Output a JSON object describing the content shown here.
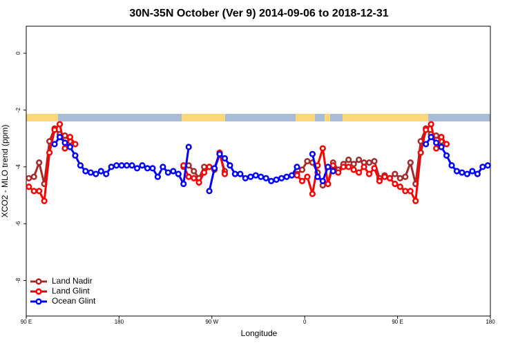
{
  "chart_data": {
    "type": "line",
    "title": "30N-35N October (Ver 9)   2014-09-06 to 2018-12-31",
    "x_label": "Longitude",
    "y_label": "XCO2 - MLO trend (ppm)",
    "xlim": [
      90,
      540
    ],
    "ylim": [
      -9.25,
      0.95
    ],
    "xticks": [
      {
        "value": 90,
        "label": "90 E"
      },
      180,
      {
        "value": 270,
        "label": "90 W"
      },
      {
        "value": 360,
        "label": "0"
      },
      {
        "value": 450,
        "label": "90 E"
      },
      {
        "value": 540,
        "label": "180"
      }
    ],
    "yticks": [
      0,
      -2,
      -4,
      -6,
      -8
    ],
    "legend": "bottom-left",
    "x": [
      92.5,
      97.5,
      102.5,
      107.5,
      112.5,
      117.5,
      122.5,
      127.5,
      132.5,
      137.5,
      142.5,
      147.5,
      152.5,
      157.5,
      162.5,
      167.5,
      172.5,
      177.5,
      182.5,
      187.5,
      192.5,
      197.5,
      202.5,
      207.5,
      212.5,
      217.5,
      222.5,
      227.5,
      232.5,
      237.5,
      242.5,
      247.5,
      252.5,
      257.5,
      262.5,
      267.5,
      272.5,
      277.5,
      282.5,
      287.5,
      292.5,
      297.5,
      302.5,
      307.5,
      312.5,
      317.5,
      322.5,
      327.5,
      332.5,
      337.5,
      342.5,
      347.5,
      352.5,
      357.5,
      362.5,
      367.5,
      372.5,
      377.5,
      382.5,
      387.5,
      392.5,
      397.5,
      402.5,
      407.5,
      412.5,
      417.5,
      422.5,
      427.5,
      432.5,
      437.5,
      442.5,
      447.5,
      452.5,
      457.5,
      462.5,
      467.5,
      472.5,
      477.5,
      482.5,
      487.5,
      492.5,
      497.5,
      502.5,
      507.5,
      512.5,
      517.5,
      522.5,
      527.5,
      532.5,
      537.5
    ],
    "series": [
      {
        "name": "Land Nadir",
        "color": "#a52a2a",
        "values": [
          -4.4,
          -4.35,
          -3.85,
          -4.6,
          -3.1,
          -2.65,
          -2.85,
          -2.9,
          -3.1,
          null,
          null,
          null,
          null,
          null,
          null,
          null,
          null,
          null,
          null,
          null,
          null,
          null,
          null,
          null,
          null,
          null,
          null,
          null,
          null,
          null,
          -4.0,
          -3.95,
          -4.15,
          -4.4,
          -4.0,
          -4.0,
          -4.1,
          -3.55,
          -4.15,
          null,
          null,
          null,
          null,
          null,
          null,
          null,
          null,
          null,
          null,
          null,
          null,
          null,
          -4.25,
          -4.1,
          -3.8,
          -3.85,
          -4.2,
          -4.65,
          -4.6,
          -3.85,
          -4.1,
          -3.9,
          -3.75,
          -3.9,
          -3.75,
          -3.85,
          -3.85,
          -3.8,
          -4.4,
          -4.3,
          -4.4,
          -4.25,
          -4.4,
          -4.35,
          -3.85,
          -4.6,
          -3.1,
          -2.65,
          -2.85,
          -2.9,
          -3.1,
          null,
          null,
          null,
          null,
          null,
          null,
          null,
          null,
          null
        ]
      },
      {
        "name": "Land Glint",
        "color": "#ff0000",
        "values": [
          -4.7,
          -4.85,
          -4.85,
          -5.2,
          -3.5,
          -2.7,
          -2.5,
          -3.35,
          -2.95,
          -3.2,
          null,
          null,
          null,
          null,
          null,
          null,
          null,
          null,
          null,
          null,
          null,
          null,
          null,
          null,
          null,
          null,
          null,
          null,
          null,
          null,
          -3.95,
          -4.35,
          -4.4,
          -4.55,
          -4.2,
          -4.0,
          -4.05,
          -3.5,
          -4.25,
          null,
          null,
          null,
          null,
          null,
          null,
          null,
          null,
          null,
          null,
          null,
          null,
          null,
          -4.3,
          -4.5,
          -4.35,
          -4.95,
          -3.95,
          -3.35,
          -4.6,
          -3.95,
          -4.2,
          -4.0,
          -4.0,
          -4.1,
          -4.2,
          -4.0,
          -4.25,
          -4.05,
          -4.5,
          -4.35,
          -4.4,
          -4.6,
          -4.7,
          -4.85,
          -4.85,
          -5.2,
          -3.5,
          -2.7,
          -2.5,
          -3.35,
          -2.95,
          -3.2,
          null,
          null,
          null,
          null,
          null,
          null,
          null,
          null
        ]
      },
      {
        "name": "Ocean Glint",
        "color": "#0000ff",
        "values": [
          null,
          null,
          null,
          null,
          null,
          -3.2,
          -2.95,
          -3.15,
          -3.3,
          -3.6,
          -3.95,
          -4.15,
          -4.2,
          -4.25,
          -4.15,
          -4.25,
          -4.0,
          -3.95,
          -3.95,
          -3.95,
          -3.95,
          -4.05,
          -3.95,
          -4.05,
          -4.05,
          -4.35,
          -4.0,
          -4.2,
          -4.15,
          -4.25,
          -4.6,
          -3.3,
          null,
          null,
          null,
          -4.85,
          -4.05,
          -3.55,
          -3.7,
          -3.95,
          -4.25,
          -4.25,
          -4.4,
          -4.35,
          -4.3,
          -4.35,
          -4.4,
          -4.5,
          -4.45,
          -4.4,
          -4.35,
          -4.3,
          -4.0,
          null,
          null,
          -3.55,
          -4.35,
          -4.5,
          -4.0,
          -4.15,
          null,
          null,
          null,
          null,
          null,
          null,
          null,
          null,
          null,
          null,
          null,
          null,
          null,
          null,
          null,
          null,
          null,
          -3.2,
          -2.95,
          -3.15,
          -3.3,
          -3.6,
          -3.95,
          -4.15,
          -4.2,
          -4.25,
          -4.15,
          -4.25,
          -4.0,
          -3.95
        ]
      }
    ]
  }
}
